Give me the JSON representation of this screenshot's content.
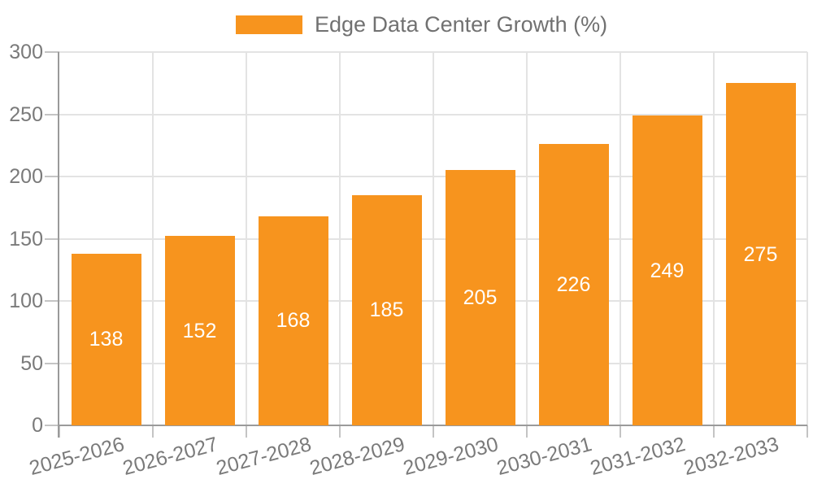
{
  "legend": {
    "label": "Edge Data Center Growth (%)"
  },
  "chart_data": {
    "type": "bar",
    "title": "Edge Data Center Growth (%)",
    "categories": [
      "2025-2026",
      "2026-2027",
      "2027-2028",
      "2028-2029",
      "2029-2030",
      "2030-2031",
      "2031-2032",
      "2032-2033"
    ],
    "values": [
      138,
      152,
      168,
      185,
      205,
      226,
      249,
      275
    ],
    "value_labels": [
      "138",
      "152",
      "168",
      "185",
      "205",
      "226",
      "249",
      "275"
    ],
    "xlabel": "",
    "ylabel": "",
    "ylim": [
      0,
      300
    ],
    "yticks": [
      0,
      50,
      100,
      150,
      200,
      250,
      300
    ],
    "grid": true,
    "legend_position": "top-center",
    "value_label_position": "inside-center"
  },
  "colors": {
    "bar": "#F7941E",
    "value_label": "#FFFFFF",
    "grid": "#E3E3E3",
    "axis_line": "#9A9A9A",
    "tick_mark": "#C4C4C4",
    "tick_label": "#7A7A7A",
    "legend_text": "#717171",
    "background": "#FFFFFF"
  }
}
